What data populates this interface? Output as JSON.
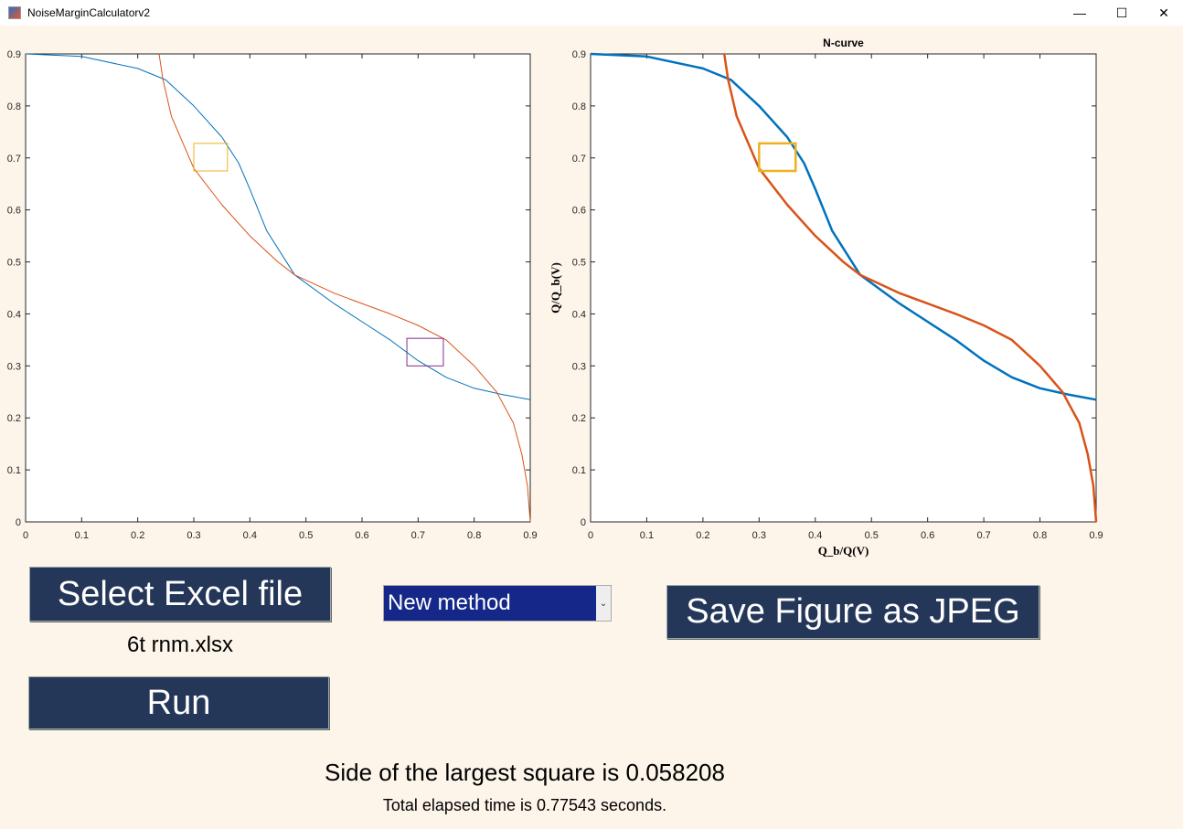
{
  "window": {
    "title": "NoiseMarginCalculatorv2",
    "controls": [
      "—",
      "☐",
      "✕"
    ]
  },
  "controls": {
    "select_button": "Select Excel file",
    "file_name": "6t rnm.xlsx",
    "run_button": "Run",
    "method_dropdown": "New method",
    "save_button": "Save Figure as JPEG"
  },
  "results": {
    "square_text": "Side of the largest square is 0.058208",
    "time_text": "Total elapsed time is 0.77543 seconds."
  },
  "chart_data": [
    {
      "type": "line",
      "title": "",
      "xlabel": "",
      "ylabel": "",
      "xlim": [
        0,
        0.9
      ],
      "ylim": [
        0,
        0.9
      ],
      "xticks": [
        "0",
        "0.1",
        "0.2",
        "0.3",
        "0.4",
        "0.5",
        "0.6",
        "0.7",
        "0.8",
        "0.9"
      ],
      "yticks": [
        "0",
        "0.1",
        "0.2",
        "0.3",
        "0.4",
        "0.5",
        "0.6",
        "0.7",
        "0.8",
        "0.9"
      ],
      "series": [
        {
          "name": "blue",
          "color": "#0072bd",
          "x": [
            0,
            0.1,
            0.2,
            0.25,
            0.3,
            0.35,
            0.38,
            0.4,
            0.43,
            0.48,
            0.55,
            0.6,
            0.65,
            0.7,
            0.75,
            0.8,
            0.85,
            0.9
          ],
          "y": [
            0.9,
            0.895,
            0.872,
            0.85,
            0.8,
            0.74,
            0.69,
            0.64,
            0.56,
            0.475,
            0.42,
            0.385,
            0.35,
            0.31,
            0.278,
            0.257,
            0.245,
            0.235
          ]
        },
        {
          "name": "orange",
          "color": "#d95319",
          "x": [
            0.238,
            0.245,
            0.26,
            0.3,
            0.35,
            0.4,
            0.45,
            0.48,
            0.55,
            0.6,
            0.65,
            0.7,
            0.75,
            0.8,
            0.84,
            0.87,
            0.885,
            0.895,
            0.9
          ],
          "y": [
            0.9,
            0.85,
            0.78,
            0.68,
            0.61,
            0.55,
            0.5,
            0.475,
            0.44,
            0.42,
            0.4,
            0.378,
            0.35,
            0.3,
            0.25,
            0.19,
            0.13,
            0.07,
            0
          ]
        }
      ],
      "squares": [
        {
          "color": "#edb120",
          "x": [
            0.3,
            0.36
          ],
          "y": [
            0.675,
            0.728
          ]
        },
        {
          "color": "#7e2f8e",
          "x": [
            0.68,
            0.745
          ],
          "y": [
            0.3,
            0.353
          ]
        }
      ]
    },
    {
      "type": "line",
      "title": "N-curve",
      "xlabel": "Q_b/Q(V)",
      "ylabel": "Q/Q_b(V)",
      "xlim": [
        0,
        0.9
      ],
      "ylim": [
        0,
        0.9
      ],
      "xticks": [
        "0",
        "0.1",
        "0.2",
        "0.3",
        "0.4",
        "0.5",
        "0.6",
        "0.7",
        "0.8",
        "0.9"
      ],
      "yticks": [
        "0",
        "0.1",
        "0.2",
        "0.3",
        "0.4",
        "0.5",
        "0.6",
        "0.7",
        "0.8",
        "0.9"
      ],
      "series": [
        {
          "name": "blue",
          "color": "#0072bd",
          "x": [
            0,
            0.1,
            0.2,
            0.25,
            0.3,
            0.35,
            0.38,
            0.4,
            0.43,
            0.48,
            0.55,
            0.6,
            0.65,
            0.7,
            0.75,
            0.8,
            0.85,
            0.9
          ],
          "y": [
            0.9,
            0.895,
            0.872,
            0.85,
            0.8,
            0.74,
            0.69,
            0.64,
            0.56,
            0.475,
            0.42,
            0.385,
            0.35,
            0.31,
            0.278,
            0.257,
            0.245,
            0.235
          ]
        },
        {
          "name": "orange",
          "color": "#d95319",
          "x": [
            0.238,
            0.245,
            0.26,
            0.3,
            0.35,
            0.4,
            0.45,
            0.48,
            0.55,
            0.6,
            0.65,
            0.7,
            0.75,
            0.8,
            0.84,
            0.87,
            0.885,
            0.895,
            0.9
          ],
          "y": [
            0.9,
            0.85,
            0.78,
            0.68,
            0.61,
            0.55,
            0.5,
            0.475,
            0.44,
            0.42,
            0.4,
            0.378,
            0.35,
            0.3,
            0.25,
            0.19,
            0.13,
            0.07,
            0
          ]
        }
      ],
      "squares": [
        {
          "color": "#edb120",
          "x": [
            0.3,
            0.365
          ],
          "y": [
            0.675,
            0.728
          ]
        }
      ]
    }
  ]
}
